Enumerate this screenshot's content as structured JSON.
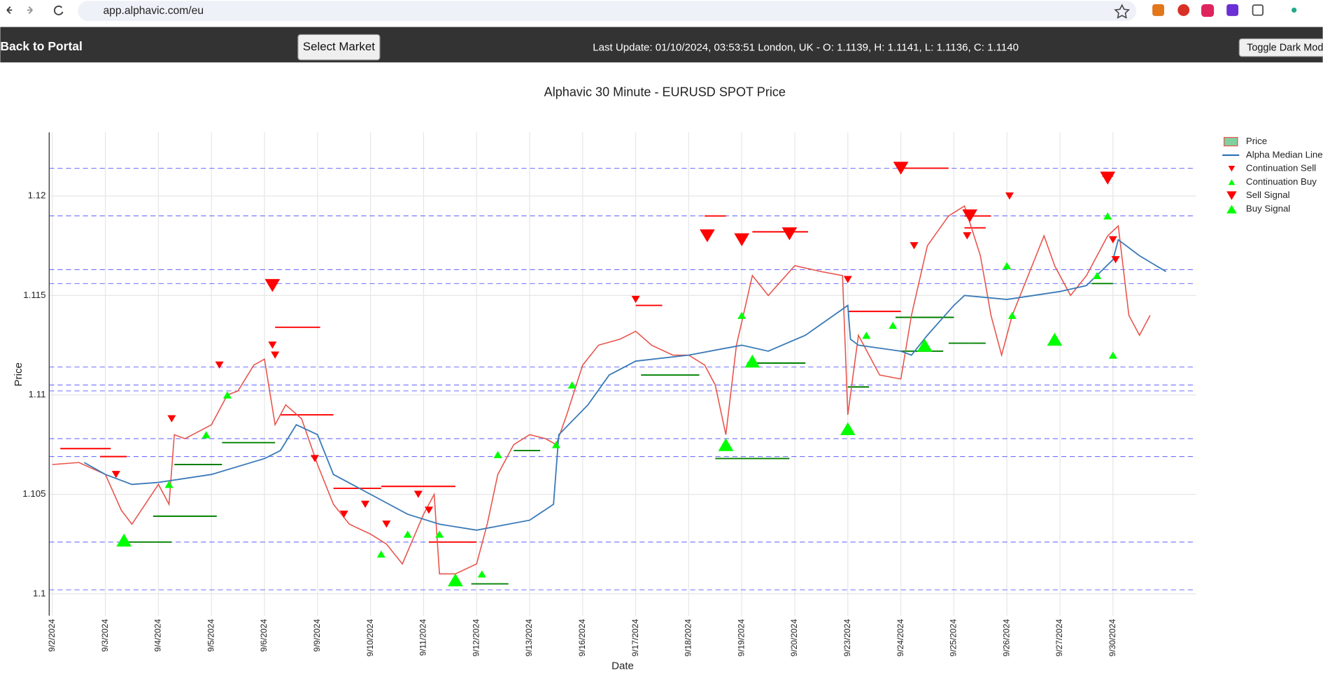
{
  "browser": {
    "url": "app.alphavic.com/eu"
  },
  "header": {
    "back": "Back to Portal",
    "select_market": "Select Market",
    "status": "Last Update: 01/10/2024, 03:53:51 London, UK - O: 1.1139, H: 1.1141, L: 1.1136, C: 1.1140",
    "toggle": "Toggle Dark Mode"
  },
  "chart_data": {
    "type": "line",
    "title": "Alphavic 30 Minute - EURUSD SPOT Price",
    "x_label": "Date",
    "y_label": "Price",
    "xlim": [
      -0.06,
      21.57
    ],
    "ylim": [
      1.0989,
      1.1232
    ],
    "xticks": [
      {
        "value": 0,
        "label": "9/2/2024"
      },
      {
        "value": 1,
        "label": "9/3/2024"
      },
      {
        "value": 2,
        "label": "9/4/2024"
      },
      {
        "value": 3,
        "label": "9/5/2024"
      },
      {
        "value": 4,
        "label": "9/6/2024"
      },
      {
        "value": 5,
        "label": "9/9/2024"
      },
      {
        "value": 6,
        "label": "9/10/2024"
      },
      {
        "value": 7,
        "label": "9/11/2024"
      },
      {
        "value": 8,
        "label": "9/12/2024"
      },
      {
        "value": 9,
        "label": "9/13/2024"
      },
      {
        "value": 10,
        "label": "9/16/2024"
      },
      {
        "value": 11,
        "label": "9/17/2024"
      },
      {
        "value": 12,
        "label": "9/18/2024"
      },
      {
        "value": 13,
        "label": "9/19/2024"
      },
      {
        "value": 14,
        "label": "9/20/2024"
      },
      {
        "value": 15,
        "label": "9/23/2024"
      },
      {
        "value": 16,
        "label": "9/24/2024"
      },
      {
        "value": 17,
        "label": "9/25/2024"
      },
      {
        "value": 18,
        "label": "9/26/2024"
      },
      {
        "value": 19,
        "label": "9/27/2024"
      },
      {
        "value": 20,
        "label": "9/30/2024"
      }
    ],
    "yticks": [
      1.1,
      1.105,
      1.11,
      1.115,
      1.12
    ],
    "grid": true,
    "hlines": {
      "color": "#3333ff",
      "values": [
        1.1214,
        1.119,
        1.1163,
        1.1156,
        1.1114,
        1.1105,
        1.1102,
        1.1078,
        1.1069,
        1.1026,
        1.1002
      ]
    },
    "levels": [
      {
        "color": "#ff0000",
        "x": [
          0.15,
          1.1
        ],
        "y": 1.1073
      },
      {
        "color": "#ff0000",
        "x": [
          0.9,
          1.4
        ],
        "y": 1.1069
      },
      {
        "color": "#ff0000",
        "x": [
          4.2,
          5.05
        ],
        "y": 1.1134
      },
      {
        "color": "#ff0000",
        "x": [
          4.3,
          5.3
        ],
        "y": 1.109
      },
      {
        "color": "#ff0000",
        "x": [
          5.3,
          6.2
        ],
        "y": 1.1053
      },
      {
        "color": "#ff0000",
        "x": [
          6.2,
          7.6
        ],
        "y": 1.1054
      },
      {
        "color": "#ff0000",
        "x": [
          7.1,
          8.0
        ],
        "y": 1.1026
      },
      {
        "color": "#ff0000",
        "x": [
          11.0,
          11.5
        ],
        "y": 1.1145
      },
      {
        "color": "#ff0000",
        "x": [
          12.3,
          12.7
        ],
        "y": 1.119
      },
      {
        "color": "#ff0000",
        "x": [
          13.2,
          14.25
        ],
        "y": 1.1182
      },
      {
        "color": "#ff0000",
        "x": [
          15.0,
          16.0
        ],
        "y": 1.1142
      },
      {
        "color": "#ff0000",
        "x": [
          16.0,
          16.9
        ],
        "y": 1.1214
      },
      {
        "color": "#ff0000",
        "x": [
          17.2,
          17.7
        ],
        "y": 1.119
      },
      {
        "color": "#ff0000",
        "x": [
          17.2,
          17.6
        ],
        "y": 1.1184
      },
      {
        "color": "#ff0000",
        "x": [
          19.8,
          20.0
        ],
        "y": 1.121
      },
      {
        "color": "#008000",
        "x": [
          1.3,
          2.25
        ],
        "y": 1.1026
      },
      {
        "color": "#008000",
        "x": [
          1.9,
          3.1
        ],
        "y": 1.1039
      },
      {
        "color": "#008000",
        "x": [
          2.3,
          3.2
        ],
        "y": 1.1065
      },
      {
        "color": "#008000",
        "x": [
          3.2,
          4.2
        ],
        "y": 1.1076
      },
      {
        "color": "#008000",
        "x": [
          7.9,
          8.6
        ],
        "y": 1.1005
      },
      {
        "color": "#008000",
        "x": [
          8.7,
          9.2
        ],
        "y": 1.1072
      },
      {
        "color": "#008000",
        "x": [
          11.1,
          12.2
        ],
        "y": 1.111
      },
      {
        "color": "#008000",
        "x": [
          12.5,
          13.9
        ],
        "y": 1.1068
      },
      {
        "color": "#008000",
        "x": [
          13.1,
          14.2
        ],
        "y": 1.1116
      },
      {
        "color": "#008000",
        "x": [
          15.0,
          15.4
        ],
        "y": 1.1104
      },
      {
        "color": "#008000",
        "x": [
          16.0,
          16.8
        ],
        "y": 1.1122
      },
      {
        "color": "#008000",
        "x": [
          15.9,
          17.0
        ],
        "y": 1.1139
      },
      {
        "color": "#008000",
        "x": [
          16.9,
          17.3
        ],
        "y": 1.1126
      },
      {
        "color": "#008000",
        "x": [
          17.3,
          17.6
        ],
        "y": 1.1126
      },
      {
        "color": "#008000",
        "x": [
          19.6,
          20.0
        ],
        "y": 1.1156
      }
    ],
    "series": [
      {
        "name": "Price",
        "color": "#e8534a",
        "marker": "line",
        "x": [
          0,
          0.5,
          1.0,
          1.3,
          1.5,
          2.0,
          2.2,
          2.3,
          2.5,
          3.0,
          3.3,
          3.5,
          3.8,
          4.0,
          4.2,
          4.4,
          4.7,
          5.0,
          5.3,
          5.6,
          6.0,
          6.3,
          6.6,
          7.0,
          7.2,
          7.3,
          7.6,
          8.0,
          8.2,
          8.4,
          8.7,
          9.0,
          9.3,
          9.5,
          9.7,
          10.0,
          10.3,
          10.7,
          11.0,
          11.3,
          11.7,
          12.0,
          12.3,
          12.5,
          12.7,
          12.9,
          13.2,
          13.5,
          14.0,
          14.5,
          14.9,
          15.0,
          15.2,
          15.6,
          16.0,
          16.2,
          16.5,
          16.9,
          17.2,
          17.5,
          17.7,
          17.9,
          18.1,
          18.4,
          18.7,
          18.9,
          19.2,
          19.5,
          19.9,
          20.1,
          20.3,
          20.5,
          20.7
        ],
        "values": [
          1.1065,
          1.1066,
          1.106,
          1.1042,
          1.1035,
          1.1055,
          1.1045,
          1.108,
          1.1078,
          1.1085,
          1.11,
          1.1102,
          1.1115,
          1.1118,
          1.1085,
          1.1095,
          1.1088,
          1.1065,
          1.1045,
          1.1035,
          1.103,
          1.1025,
          1.1015,
          1.104,
          1.105,
          1.101,
          1.101,
          1.1015,
          1.1035,
          1.106,
          1.1075,
          1.108,
          1.1078,
          1.1075,
          1.109,
          1.1115,
          1.1125,
          1.1128,
          1.1132,
          1.1125,
          1.112,
          1.112,
          1.1115,
          1.1105,
          1.108,
          1.1125,
          1.116,
          1.115,
          1.1165,
          1.1162,
          1.116,
          1.109,
          1.113,
          1.111,
          1.1108,
          1.114,
          1.1175,
          1.119,
          1.1195,
          1.117,
          1.114,
          1.112,
          1.114,
          1.116,
          1.118,
          1.1165,
          1.115,
          1.116,
          1.118,
          1.1185,
          1.114,
          1.113,
          1.114
        ]
      },
      {
        "name": "Alpha Median Line",
        "color": "#3a7ab8",
        "marker": "line",
        "x": [
          0.6,
          1.0,
          1.5,
          2.0,
          3.0,
          4.0,
          4.3,
          4.6,
          5.0,
          5.3,
          6.0,
          6.7,
          7.3,
          8.0,
          9.0,
          9.45,
          9.55,
          10.1,
          10.5,
          11.0,
          12.0,
          13.0,
          13.5,
          14.2,
          15.0,
          15.05,
          15.2,
          16.0,
          16.2,
          16.5,
          17.0,
          17.2,
          18.0,
          19.0,
          19.5,
          20.0,
          20.1,
          20.5,
          21.0
        ],
        "values": [
          1.1066,
          1.106,
          1.1055,
          1.1056,
          1.106,
          1.1068,
          1.1072,
          1.1085,
          1.108,
          1.106,
          1.105,
          1.104,
          1.1035,
          1.1032,
          1.1037,
          1.1045,
          1.108,
          1.1095,
          1.111,
          1.1117,
          1.112,
          1.1125,
          1.1122,
          1.113,
          1.1145,
          1.1128,
          1.1125,
          1.1122,
          1.112,
          1.113,
          1.1145,
          1.115,
          1.1148,
          1.1152,
          1.1155,
          1.1168,
          1.1178,
          1.117,
          1.1162
        ]
      },
      {
        "name": "Continuation Sell",
        "color": "#ff0000",
        "marker": "triangle-down",
        "marker_size": "small",
        "x": [
          1.2,
          2.25,
          3.15,
          4.15,
          4.2,
          4.95,
          5.5,
          5.9,
          6.3,
          6.9,
          7.1,
          11.0,
          15.0,
          16.25,
          17.25,
          18.05,
          20.0,
          20.05
        ],
        "values": [
          1.106,
          1.1088,
          1.1115,
          1.1125,
          1.112,
          1.1068,
          1.104,
          1.1045,
          1.1035,
          1.105,
          1.1042,
          1.1148,
          1.1158,
          1.1175,
          1.118,
          1.12,
          1.1178,
          1.1168
        ]
      },
      {
        "name": "Continuation Buy",
        "color": "#00ff00",
        "marker": "triangle-up",
        "marker_size": "small",
        "x": [
          2.2,
          2.9,
          3.3,
          6.2,
          6.7,
          7.3,
          8.1,
          8.4,
          9.5,
          9.8,
          13.0,
          15.35,
          15.85,
          18.0,
          18.1,
          19.7,
          19.9,
          20.0
        ],
        "values": [
          1.1055,
          1.108,
          1.11,
          1.102,
          1.103,
          1.103,
          1.101,
          1.107,
          1.1075,
          1.1105,
          1.114,
          1.113,
          1.1135,
          1.1165,
          1.114,
          1.116,
          1.119,
          1.112
        ]
      },
      {
        "name": "Sell Signal",
        "color": "#ff0000",
        "marker": "triangle-down",
        "marker_size": "large",
        "x": [
          4.15,
          12.35,
          13.0,
          13.9,
          16.0,
          17.3,
          19.9
        ],
        "values": [
          1.1155,
          1.118,
          1.1178,
          1.1181,
          1.1214,
          1.119,
          1.1209
        ]
      },
      {
        "name": "Buy Signal",
        "color": "#00ff00",
        "marker": "triangle-up",
        "marker_size": "large",
        "x": [
          1.35,
          7.6,
          12.7,
          13.2,
          15.0,
          16.45,
          18.9
        ],
        "values": [
          1.1027,
          1.1007,
          1.1075,
          1.1117,
          1.1083,
          1.1125,
          1.1128
        ]
      }
    ]
  }
}
